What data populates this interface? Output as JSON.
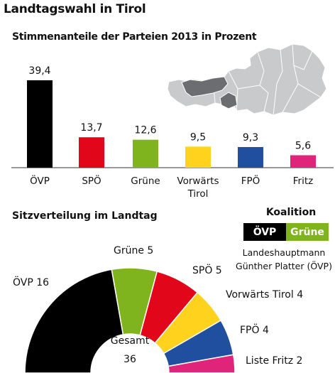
{
  "header": {
    "title": "Landtagswahl in Tirol",
    "subtitle": "Stimmenanteile der Parteien 2013 in Prozent"
  },
  "seats_title": "Sitzverteilung im Landtag",
  "coalition": {
    "title": "Koalition",
    "parties": [
      {
        "name": "ÖVP",
        "color": "#000000"
      },
      {
        "name": "Grüne",
        "color": "#80b41e"
      }
    ],
    "note_line1": "Landeshauptmann",
    "note_line2": "Günther Platter (ÖVP)"
  },
  "chart_data": [
    {
      "type": "bar",
      "title": "Stimmenanteile der Parteien 2013 in Prozent",
      "categories": [
        "ÖVP",
        "SPÖ",
        "Grüne",
        "Vorwärts Tirol",
        "FPÖ",
        "Fritz"
      ],
      "category_lines": [
        [
          "ÖVP"
        ],
        [
          "SPÖ"
        ],
        [
          "Grüne"
        ],
        [
          "Vorwärts",
          "Tirol"
        ],
        [
          "FPÖ"
        ],
        [
          "Fritz"
        ]
      ],
      "values": [
        39.4,
        13.7,
        12.6,
        9.5,
        9.3,
        5.6
      ],
      "value_labels": [
        "39,4",
        "13,7",
        "12,6",
        "9,5",
        "9,3",
        "5,6"
      ],
      "colors": [
        "#000000",
        "#e2061b",
        "#80b41e",
        "#ffd21e",
        "#1f4f9e",
        "#e0247a"
      ],
      "ylim": [
        0,
        40
      ]
    },
    {
      "type": "pie",
      "title": "Sitzverteilung im Landtag",
      "categories": [
        "ÖVP",
        "Grüne",
        "SPÖ",
        "Vorwärts Tirol",
        "FPÖ",
        "Liste Fritz"
      ],
      "values": [
        16,
        5,
        5,
        4,
        4,
        2
      ],
      "labels": [
        "ÖVP 16",
        "Grüne 5",
        "SPÖ 5",
        "Vorwärts Tirol 4",
        "FPÖ 4",
        "Liste Fritz 2"
      ],
      "colors": [
        "#000000",
        "#80b41e",
        "#e2061b",
        "#ffd21e",
        "#1f4f9e",
        "#e0247a"
      ],
      "total_label": "Gesamt",
      "total": "36"
    }
  ]
}
